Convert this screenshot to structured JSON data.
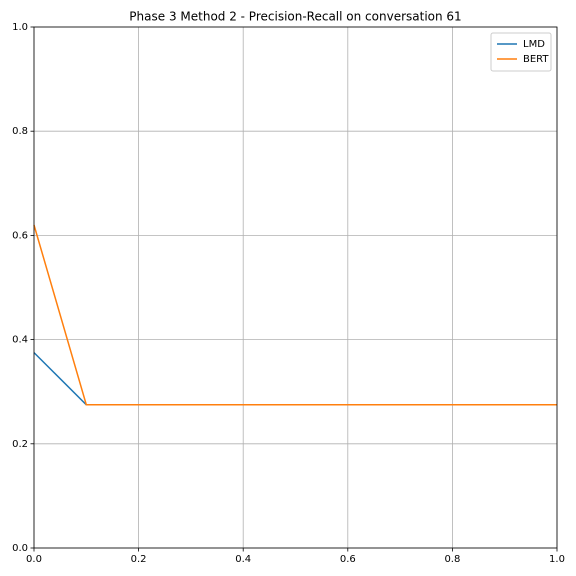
{
  "chart_data": {
    "type": "line",
    "title": "Phase 3 Method 2 - Precision-Recall on conversation 61",
    "x": [
      0,
      0.1,
      1
    ],
    "series": [
      {
        "name": "LMD",
        "color": "#1f77b4",
        "values": [
          0.375,
          0.275,
          0.275
        ]
      },
      {
        "name": "BERT",
        "color": "#ff7f0e",
        "values": [
          0.62,
          0.275,
          0.275
        ]
      }
    ],
    "xlim": [
      0,
      1
    ],
    "ylim": [
      0,
      1
    ],
    "xticks": [
      {
        "value": 0,
        "label": "0.0"
      },
      0.2,
      0.4,
      0.6,
      0.8,
      {
        "value": 1,
        "label": "1.0"
      }
    ],
    "yticks": [
      {
        "value": 0,
        "label": "0.0"
      },
      0.2,
      0.4,
      0.6,
      0.8,
      {
        "value": 1,
        "label": "1.0"
      }
    ],
    "grid": true,
    "legend": "upper-right"
  }
}
